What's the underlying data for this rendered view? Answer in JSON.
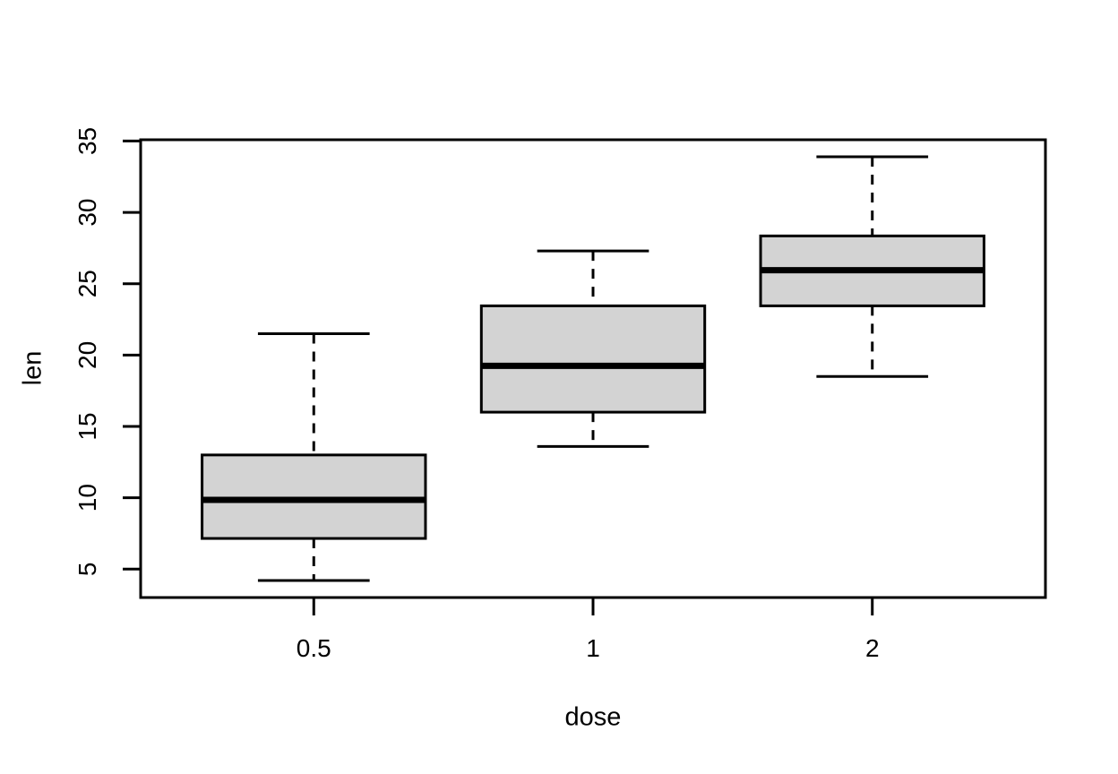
{
  "figure": {
    "background": "#ffffff"
  },
  "chart_data": {
    "type": "boxplot",
    "title": "",
    "xlabel": "dose",
    "ylabel": "len",
    "categories": [
      "0.5",
      "1",
      "2"
    ],
    "positions": [
      1,
      2,
      3
    ],
    "series": [
      {
        "name": "0.5",
        "whisker_low": 4.2,
        "q1": 7.15,
        "median": 9.85,
        "q3": 13.0,
        "whisker_high": 21.5,
        "outliers": []
      },
      {
        "name": "1",
        "whisker_low": 13.6,
        "q1": 16.0,
        "median": 19.25,
        "q3": 23.45,
        "whisker_high": 27.3,
        "outliers": []
      },
      {
        "name": "2",
        "whisker_low": 18.5,
        "q1": 23.45,
        "median": 25.95,
        "q3": 28.35,
        "whisker_high": 33.9,
        "outliers": []
      }
    ],
    "y_ticks": [
      5,
      10,
      15,
      20,
      25,
      30,
      35
    ],
    "ylim": [
      3.01,
      35.09
    ],
    "xlim": [
      0.38,
      3.62
    ],
    "box_width": 0.8,
    "staple_width": 0.4,
    "grid": false,
    "legend": null,
    "styles": {
      "box_fill": "#d3d3d3",
      "line_color": "#000000",
      "whisker_style": "dashed"
    }
  }
}
